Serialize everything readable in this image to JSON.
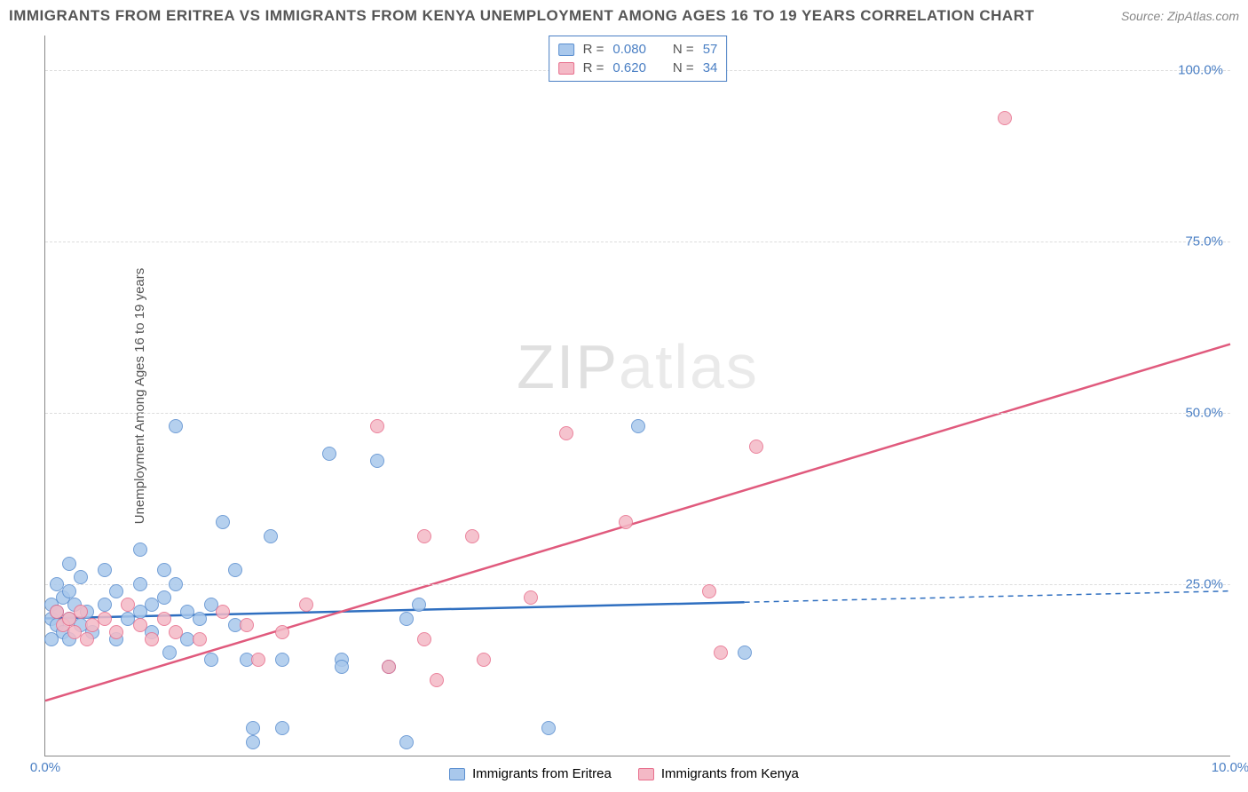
{
  "header": {
    "title": "IMMIGRANTS FROM ERITREA VS IMMIGRANTS FROM KENYA UNEMPLOYMENT AMONG AGES 16 TO 19 YEARS CORRELATION CHART",
    "source": "Source: ZipAtlas.com"
  },
  "watermark": {
    "part1": "ZIP",
    "part2": "atlas"
  },
  "chart": {
    "type": "scatter",
    "ylabel": "Unemployment Among Ages 16 to 19 years",
    "xlim": [
      0,
      10
    ],
    "ylim": [
      0,
      105
    ],
    "xticks": [
      {
        "v": 0,
        "label": "0.0%"
      },
      {
        "v": 10,
        "label": "10.0%"
      }
    ],
    "yticks": [
      {
        "v": 25,
        "label": "25.0%"
      },
      {
        "v": 50,
        "label": "50.0%"
      },
      {
        "v": 75,
        "label": "75.0%"
      },
      {
        "v": 100,
        "label": "100.0%"
      }
    ],
    "grid_color": "#dddddd",
    "background_color": "#ffffff",
    "marker_size": 16,
    "series": [
      {
        "name": "Immigrants from Eritrea",
        "fill": "#a9c8ec",
        "stroke": "#5b8fd0",
        "line_color": "#2f6fc0",
        "R": "0.080",
        "N": "57",
        "trend": {
          "y_at_x0": 20,
          "y_at_x10": 24,
          "solid_until_x": 5.9
        },
        "points": [
          [
            0.05,
            22
          ],
          [
            0.05,
            20
          ],
          [
            0.05,
            17
          ],
          [
            0.1,
            25
          ],
          [
            0.1,
            21
          ],
          [
            0.1,
            19
          ],
          [
            0.15,
            23
          ],
          [
            0.15,
            18
          ],
          [
            0.2,
            28
          ],
          [
            0.2,
            24
          ],
          [
            0.2,
            20
          ],
          [
            0.2,
            17
          ],
          [
            0.25,
            22
          ],
          [
            0.3,
            26
          ],
          [
            0.3,
            19
          ],
          [
            0.35,
            21
          ],
          [
            0.4,
            18
          ],
          [
            0.5,
            27
          ],
          [
            0.5,
            22
          ],
          [
            0.6,
            24
          ],
          [
            0.6,
            17
          ],
          [
            0.7,
            20
          ],
          [
            0.8,
            30
          ],
          [
            0.8,
            25
          ],
          [
            0.8,
            21
          ],
          [
            0.9,
            22
          ],
          [
            0.9,
            18
          ],
          [
            1.0,
            27
          ],
          [
            1.0,
            23
          ],
          [
            1.05,
            15
          ],
          [
            1.1,
            48
          ],
          [
            1.1,
            25
          ],
          [
            1.2,
            21
          ],
          [
            1.2,
            17
          ],
          [
            1.3,
            20
          ],
          [
            1.4,
            22
          ],
          [
            1.4,
            14
          ],
          [
            1.5,
            34
          ],
          [
            1.6,
            27
          ],
          [
            1.6,
            19
          ],
          [
            1.7,
            14
          ],
          [
            1.75,
            4
          ],
          [
            1.75,
            2
          ],
          [
            1.9,
            32
          ],
          [
            2.0,
            14
          ],
          [
            2.0,
            4
          ],
          [
            2.4,
            44
          ],
          [
            2.5,
            14
          ],
          [
            2.5,
            13
          ],
          [
            2.8,
            43
          ],
          [
            2.9,
            13
          ],
          [
            3.05,
            20
          ],
          [
            3.05,
            2
          ],
          [
            3.15,
            22
          ],
          [
            4.25,
            4
          ],
          [
            5.0,
            48
          ],
          [
            5.9,
            15
          ]
        ]
      },
      {
        "name": "Immigrants from Kenya",
        "fill": "#f4b9c6",
        "stroke": "#e86f8d",
        "line_color": "#e05a7d",
        "R": "0.620",
        "N": "34",
        "trend": {
          "y_at_x0": 8,
          "y_at_x10": 60,
          "solid_until_x": 10
        },
        "points": [
          [
            0.1,
            21
          ],
          [
            0.15,
            19
          ],
          [
            0.2,
            20
          ],
          [
            0.25,
            18
          ],
          [
            0.3,
            21
          ],
          [
            0.35,
            17
          ],
          [
            0.4,
            19
          ],
          [
            0.5,
            20
          ],
          [
            0.6,
            18
          ],
          [
            0.7,
            22
          ],
          [
            0.8,
            19
          ],
          [
            0.9,
            17
          ],
          [
            1.0,
            20
          ],
          [
            1.1,
            18
          ],
          [
            1.3,
            17
          ],
          [
            1.5,
            21
          ],
          [
            1.7,
            19
          ],
          [
            1.8,
            14
          ],
          [
            2.0,
            18
          ],
          [
            2.2,
            22
          ],
          [
            2.8,
            48
          ],
          [
            2.9,
            13
          ],
          [
            3.2,
            32
          ],
          [
            3.2,
            17
          ],
          [
            3.3,
            11
          ],
          [
            3.6,
            32
          ],
          [
            3.7,
            14
          ],
          [
            4.1,
            23
          ],
          [
            4.4,
            47
          ],
          [
            4.9,
            34
          ],
          [
            5.6,
            24
          ],
          [
            5.7,
            15
          ],
          [
            6.0,
            45
          ],
          [
            8.1,
            93
          ]
        ]
      }
    ]
  },
  "legend_top_labels": {
    "R": "R =",
    "N": "N ="
  },
  "colors": {
    "axis_text": "#4a7fc4",
    "title_text": "#555555",
    "value_text": "#4a7fc4"
  }
}
